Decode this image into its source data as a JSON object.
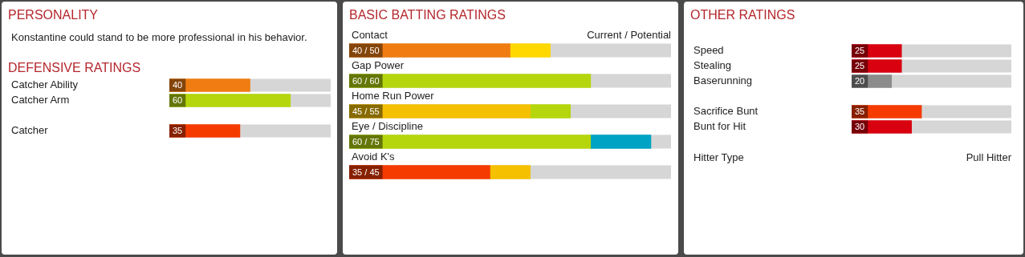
{
  "chart_data": [
    {
      "type": "other",
      "title": "PERSONALITY",
      "annotations": [
        "Konstantine could stand to be more professional in his behavior."
      ]
    },
    {
      "type": "bar",
      "orientation": "horizontal",
      "title": "DEFENSIVE RATINGS",
      "categories": [
        "Catcher Ability",
        "Catcher Arm",
        null,
        "Catcher"
      ],
      "values": [
        40,
        60,
        null,
        35
      ],
      "colors": [
        "#f07d12",
        "#b5d60c",
        null,
        "#f53b00"
      ],
      "xlim": [
        0,
        80
      ],
      "data_labels": true
    },
    {
      "type": "bar",
      "orientation": "horizontal",
      "stacked": true,
      "title": "BASIC BATTING RATINGS",
      "categories": [
        "Contact",
        "Gap Power",
        "Home Run Power",
        "Eye / Discipline",
        "Avoid K's"
      ],
      "series": [
        {
          "colors": [
            "#f07d12",
            "#b5d60c",
            "#f5c000",
            "#b5d60c",
            "#f53b00"
          ],
          "values": [
            40,
            60,
            45,
            60,
            35
          ],
          "value_labels": [
            "40 / 50",
            "60 / 60",
            "45 / 55",
            "60 / 75",
            "35 / 45"
          ]
        },
        {
          "colors": [
            "#ffd800",
            "#b5d60c",
            "#b5d60c",
            "#00a3c4",
            "#f5c000"
          ],
          "values": [
            10,
            0,
            10,
            15,
            10
          ]
        }
      ],
      "xlim": [
        0,
        80
      ],
      "annotations": [
        "Current / Potential"
      ]
    },
    {
      "type": "bar",
      "orientation": "horizontal",
      "title": "OTHER RATINGS",
      "categories": [
        "Speed",
        "Stealing",
        "Baserunning",
        null,
        "Sacrifice Bunt",
        "Bunt for Hit"
      ],
      "values": [
        25,
        25,
        20,
        null,
        35,
        30
      ],
      "colors": [
        "#d9000f",
        "#d9000f",
        "#8c8c8c",
        null,
        "#f53b00",
        "#d9000f"
      ],
      "xlim": [
        0,
        80
      ],
      "data_labels": true,
      "annotations": [
        "Hitter Type",
        "Pull Hitter"
      ]
    }
  ]
}
